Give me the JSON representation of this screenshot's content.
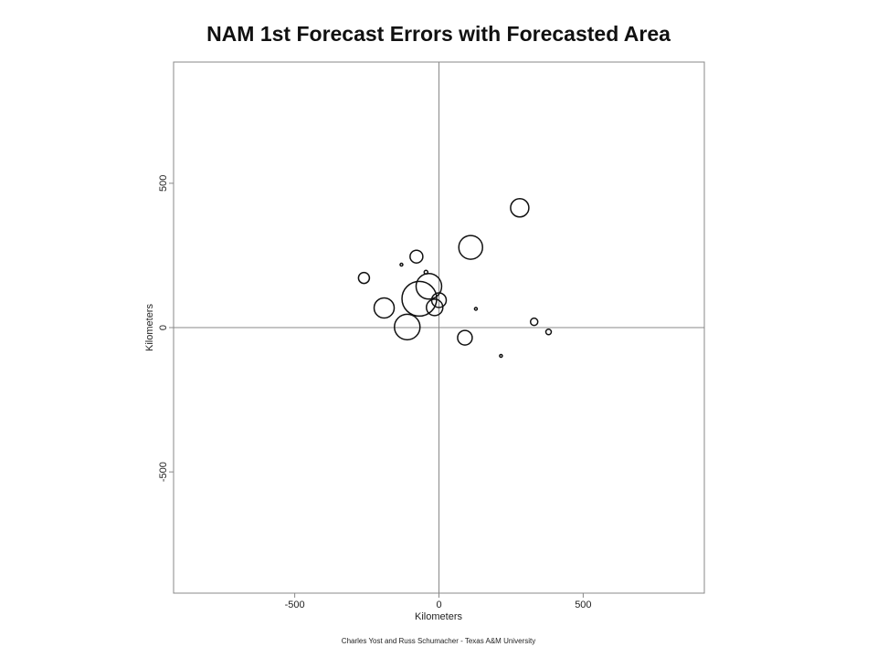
{
  "chart_data": {
    "type": "scatter",
    "title": "NAM 1st Forecast Errors with Forecasted Area",
    "xlabel": "Kilometers",
    "ylabel": "Kilometers",
    "xlim": [
      -920,
      920
    ],
    "ylim": [
      -920,
      920
    ],
    "xticks": [
      -500,
      0,
      500
    ],
    "yticks": [
      -500,
      0,
      500
    ],
    "xtick_labels": [
      "-500",
      "0",
      "500"
    ],
    "ytick_labels": [
      "-500",
      "0",
      "500"
    ],
    "reference_lines": {
      "x": 0,
      "y": 0
    },
    "grid": false,
    "legend": "none",
    "marker_style": "hollow-circle",
    "marker_stroke": "#111111",
    "axis_line_color": "#888888",
    "credit": "Charles Yost and Russ Schumacher - Texas A&M University",
    "points": [
      {
        "x": -260,
        "y": 172,
        "size": 6
      },
      {
        "x": -130,
        "y": 218,
        "size": 1.5
      },
      {
        "x": -78,
        "y": 246,
        "size": 7
      },
      {
        "x": -45,
        "y": 192,
        "size": 2
      },
      {
        "x": -68,
        "y": 100,
        "size": 19
      },
      {
        "x": -35,
        "y": 143,
        "size": 14
      },
      {
        "x": -190,
        "y": 68,
        "size": 11
      },
      {
        "x": -110,
        "y": 2,
        "size": 14
      },
      {
        "x": -15,
        "y": 70,
        "size": 9
      },
      {
        "x": 0,
        "y": 95,
        "size": 8
      },
      {
        "x": 110,
        "y": 278,
        "size": 13
      },
      {
        "x": 128,
        "y": 65,
        "size": 1.5
      },
      {
        "x": 280,
        "y": 415,
        "size": 10
      },
      {
        "x": 90,
        "y": -35,
        "size": 8
      },
      {
        "x": 330,
        "y": 20,
        "size": 4
      },
      {
        "x": 380,
        "y": -15,
        "size": 3
      },
      {
        "x": 215,
        "y": -98,
        "size": 1.5
      }
    ]
  }
}
